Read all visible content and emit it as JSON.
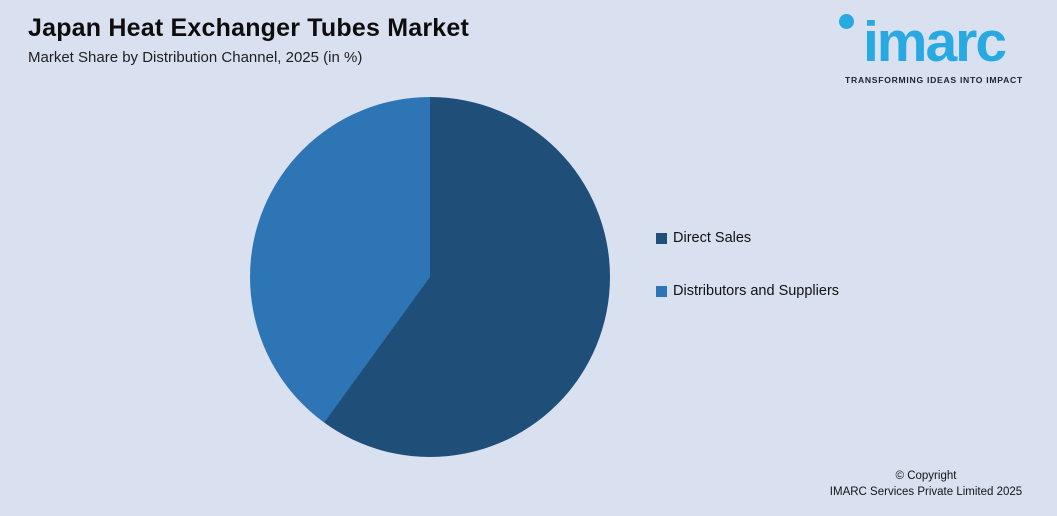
{
  "header": {
    "title": "Japan Heat Exchanger Tubes Market",
    "subtitle": "Market Share by Distribution Channel, 2025 (in %)"
  },
  "logo": {
    "wordmark": "imarc",
    "tagline": "TRANSFORMING IDEAS INTO IMPACT",
    "brand_color": "#29A9E1",
    "tagline_color": "#1A2332"
  },
  "chart_data": {
    "type": "pie",
    "title": "Japan Heat Exchanger Tubes Market",
    "subtitle": "Market Share by Distribution Channel, 2025 (in %)",
    "categories": [
      "Direct Sales",
      "Distributors and Suppliers"
    ],
    "values": [
      60,
      40
    ],
    "unit": "%",
    "colors": [
      "#1F4E79",
      "#2E75B6"
    ],
    "start_angle_deg": 0,
    "direction": "clockwise",
    "data_labels": false,
    "legend_position": "right"
  },
  "legend": {
    "items": [
      {
        "label": "Direct Sales",
        "color": "#1F4E79"
      },
      {
        "label": "Distributors and Suppliers",
        "color": "#2E75B6"
      }
    ]
  },
  "footer": {
    "line1": "© Copyright",
    "line2": "IMARC Services Private Limited 2025"
  },
  "colors": {
    "background": "#D9E1F1"
  }
}
